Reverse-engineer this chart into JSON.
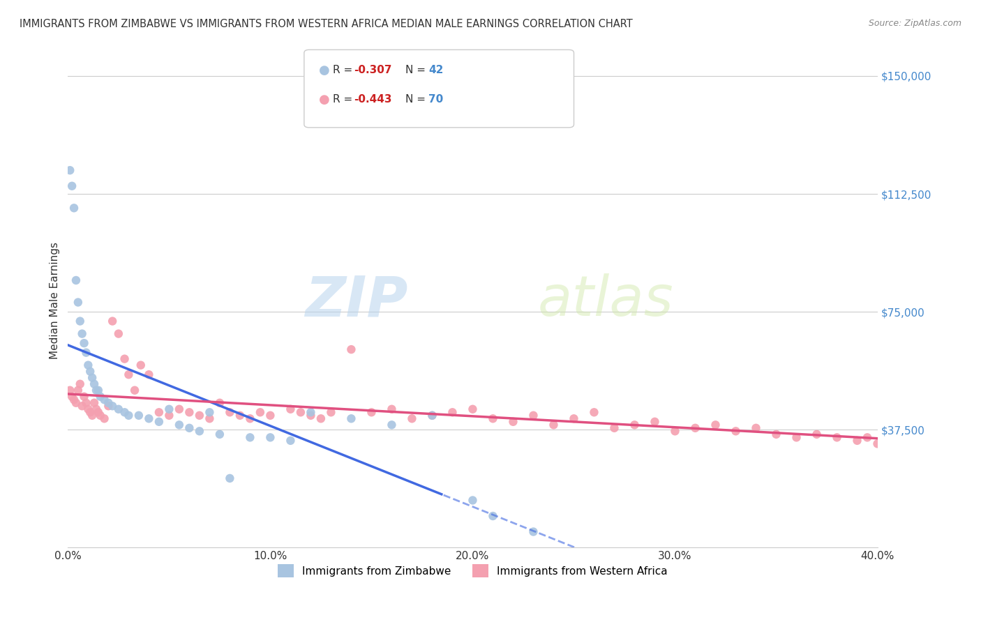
{
  "title": "IMMIGRANTS FROM ZIMBABWE VS IMMIGRANTS FROM WESTERN AFRICA MEDIAN MALE EARNINGS CORRELATION CHART",
  "source": "Source: ZipAtlas.com",
  "ylabel": "Median Male Earnings",
  "yticks": [
    0,
    37500,
    75000,
    112500,
    150000
  ],
  "ytick_labels": [
    "",
    "$37,500",
    "$75,000",
    "$112,500",
    "$150,000"
  ],
  "xlim": [
    0.0,
    0.4
  ],
  "ylim": [
    0,
    157000
  ],
  "legend1_r": "-0.307",
  "legend1_n": "42",
  "legend2_r": "-0.443",
  "legend2_n": "70",
  "color_blue": "#a8c4e0",
  "color_pink": "#f4a0b0",
  "color_blue_line": "#4169e1",
  "color_pink_line": "#e05080",
  "watermark_zip": "ZIP",
  "watermark_atlas": "atlas",
  "zimbabwe_x": [
    0.001,
    0.002,
    0.003,
    0.004,
    0.005,
    0.006,
    0.007,
    0.008,
    0.009,
    0.01,
    0.011,
    0.012,
    0.013,
    0.014,
    0.015,
    0.016,
    0.018,
    0.02,
    0.022,
    0.025,
    0.028,
    0.03,
    0.035,
    0.04,
    0.045,
    0.05,
    0.055,
    0.06,
    0.065,
    0.07,
    0.075,
    0.08,
    0.09,
    0.1,
    0.11,
    0.12,
    0.14,
    0.16,
    0.18,
    0.2,
    0.21,
    0.23
  ],
  "zimbabwe_y": [
    120000,
    115000,
    108000,
    85000,
    78000,
    72000,
    68000,
    65000,
    62000,
    58000,
    56000,
    54000,
    52000,
    50000,
    50000,
    48000,
    47000,
    46000,
    45000,
    44000,
    43000,
    42000,
    42000,
    41000,
    40000,
    44000,
    39000,
    38000,
    37000,
    43000,
    36000,
    22000,
    35000,
    35000,
    34000,
    43000,
    41000,
    39000,
    42000,
    15000,
    10000,
    5000
  ],
  "western_africa_x": [
    0.001,
    0.002,
    0.003,
    0.004,
    0.005,
    0.006,
    0.007,
    0.008,
    0.009,
    0.01,
    0.011,
    0.012,
    0.013,
    0.014,
    0.015,
    0.016,
    0.018,
    0.02,
    0.022,
    0.025,
    0.028,
    0.03,
    0.033,
    0.036,
    0.04,
    0.045,
    0.05,
    0.055,
    0.06,
    0.065,
    0.07,
    0.075,
    0.08,
    0.085,
    0.09,
    0.095,
    0.1,
    0.11,
    0.115,
    0.12,
    0.125,
    0.13,
    0.14,
    0.15,
    0.16,
    0.17,
    0.18,
    0.19,
    0.2,
    0.21,
    0.22,
    0.23,
    0.24,
    0.25,
    0.26,
    0.27,
    0.28,
    0.29,
    0.3,
    0.31,
    0.32,
    0.33,
    0.34,
    0.35,
    0.36,
    0.37,
    0.38,
    0.39,
    0.395,
    0.4
  ],
  "western_africa_y": [
    50000,
    48000,
    47000,
    46000,
    50000,
    52000,
    45000,
    48000,
    46000,
    44000,
    43000,
    42000,
    46000,
    44000,
    43000,
    42000,
    41000,
    45000,
    72000,
    68000,
    60000,
    55000,
    50000,
    58000,
    55000,
    43000,
    42000,
    44000,
    43000,
    42000,
    41000,
    46000,
    43000,
    42000,
    41000,
    43000,
    42000,
    44000,
    43000,
    42000,
    41000,
    43000,
    63000,
    43000,
    44000,
    41000,
    42000,
    43000,
    44000,
    41000,
    40000,
    42000,
    39000,
    41000,
    43000,
    38000,
    39000,
    40000,
    37000,
    38000,
    39000,
    37000,
    38000,
    36000,
    35000,
    36000,
    35000,
    34000,
    35000,
    33000
  ]
}
